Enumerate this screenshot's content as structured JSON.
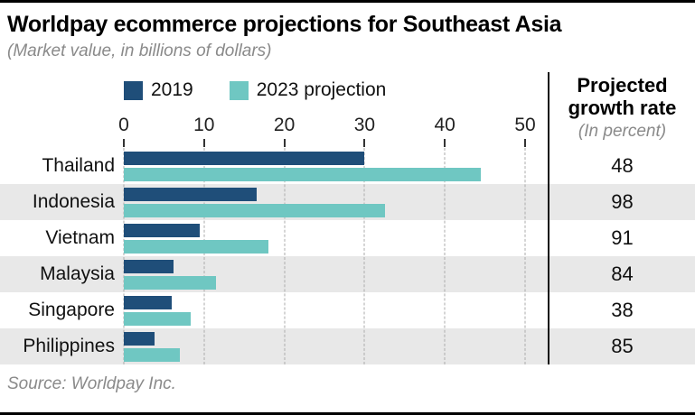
{
  "header": {
    "title": "Worldpay ecommerce projections for Southeast Asia",
    "subtitle": "(Market value, in billions of dollars)"
  },
  "growth_header": {
    "title": "Projected growth rate",
    "unit": "(In percent)"
  },
  "source": "Source: Worldpay Inc.",
  "chart_data": {
    "type": "bar",
    "orientation": "horizontal",
    "title": "Worldpay ecommerce projections for Southeast Asia",
    "subtitle": "(Market value, in billions of dollars)",
    "categories": [
      "Thailand",
      "Indonesia",
      "Vietnam",
      "Malaysia",
      "Singapore",
      "Philippines"
    ],
    "series": [
      {
        "name": "2019",
        "color": "#1f4e79",
        "values": [
          30,
          16.5,
          9.5,
          6.2,
          6,
          3.8
        ]
      },
      {
        "name": "2023 projection",
        "color": "#6fc7c2",
        "values": [
          44.5,
          32.5,
          18,
          11.5,
          8.3,
          7
        ]
      }
    ],
    "growth_rate": [
      48,
      98,
      91,
      84,
      38,
      85
    ],
    "growth_rate_label": "Projected growth rate (In percent)",
    "xlim": [
      0,
      50
    ],
    "x_ticks": [
      0,
      10,
      20,
      30,
      40,
      50
    ],
    "grid": "dashed-vertical",
    "legend_position": "top",
    "alt_row_color": "#e8e8e8"
  }
}
